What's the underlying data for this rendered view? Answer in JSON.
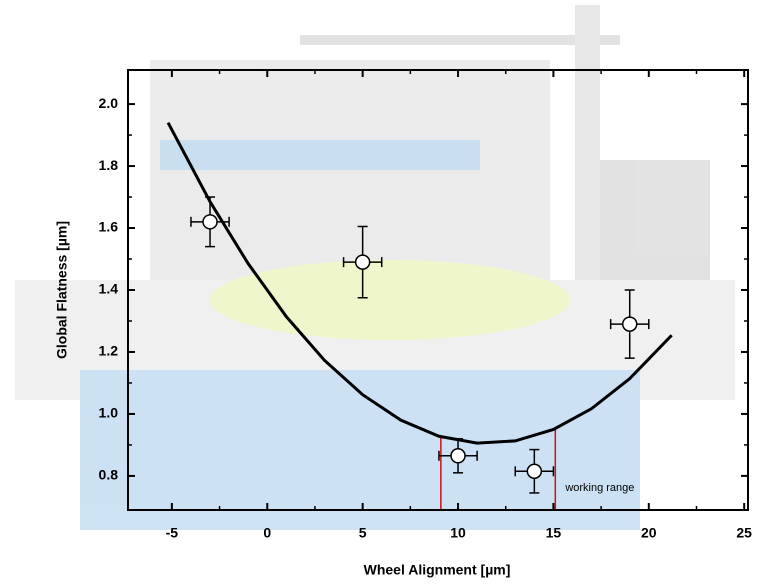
{
  "chart_data": {
    "type": "scatter",
    "xlabel": "Wheel Alignment [µm]",
    "ylabel": "Global Flatness [µm]",
    "xlim": [
      -7.3,
      25.2
    ],
    "ylim": [
      0.69,
      2.11
    ],
    "xticks": [
      -5,
      0,
      5,
      10,
      15,
      20,
      25
    ],
    "yticks": [
      {
        "value": 0.8,
        "label": "0.8"
      },
      {
        "value": 1.0,
        "label": "1.0"
      },
      {
        "value": 1.2,
        "label": "1.2"
      },
      {
        "value": 1.4,
        "label": "1.4"
      },
      {
        "value": 1.6,
        "label": "1.6"
      },
      {
        "value": 1.8,
        "label": "1.8"
      },
      {
        "value": 2.0,
        "label": "2.0"
      }
    ],
    "series": [
      {
        "x": [
          -3,
          5,
          10,
          14,
          19
        ],
        "values": [
          1.62,
          1.49,
          0.865,
          0.815,
          1.29
        ],
        "xerr": [
          1,
          1,
          1,
          1,
          1
        ],
        "yerr": [
          0.08,
          0.115,
          0.055,
          0.07,
          0.11
        ],
        "color": "#000000"
      }
    ],
    "fit": {
      "x": [
        -5.2,
        -3,
        -1,
        1,
        3,
        5,
        7,
        9,
        11,
        13,
        15,
        17,
        19,
        21.2
      ],
      "values": [
        1.94,
        1.685,
        1.485,
        1.314,
        1.173,
        1.062,
        0.98,
        0.928,
        0.906,
        0.913,
        0.95,
        1.017,
        1.114,
        1.254
      ],
      "color": "#000000"
    },
    "annotation": {
      "text": "working range",
      "range": [
        9.1,
        15.1
      ],
      "color": "#cc1111"
    }
  }
}
